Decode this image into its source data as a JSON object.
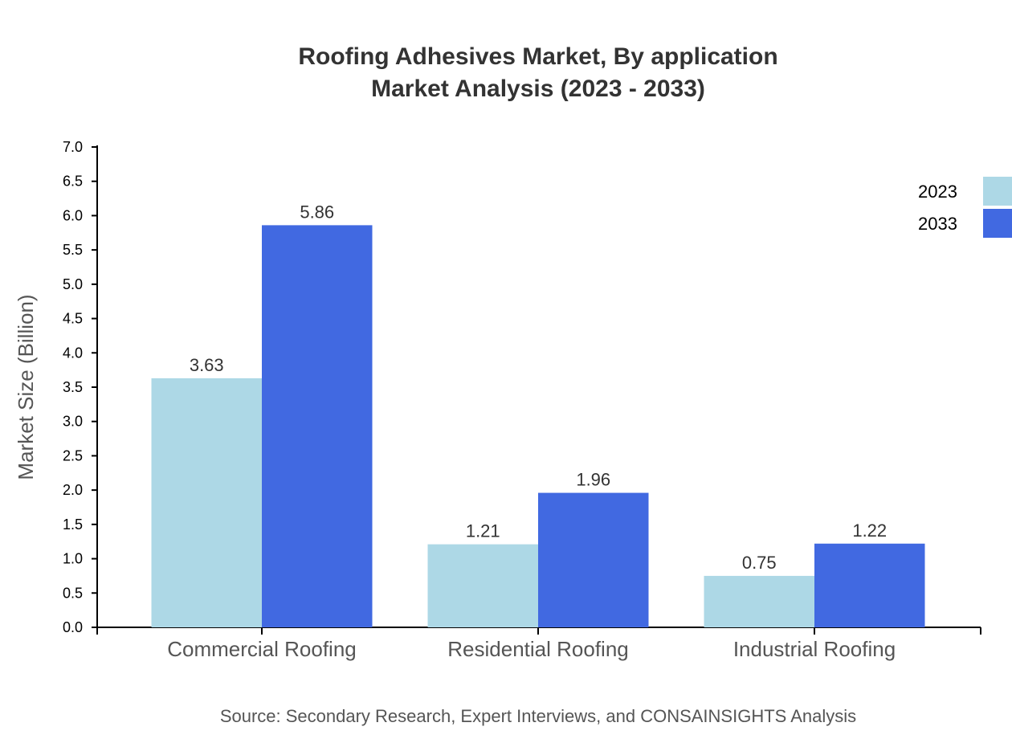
{
  "chart_data": {
    "type": "bar",
    "title": "Roofing Adhesives Market, By application",
    "subtitle": "Market Analysis (2023 - 2033)",
    "xlabel": "",
    "ylabel": "Market Size (Billion)",
    "ylim": [
      0,
      7
    ],
    "yticks": [
      "0.0",
      "0.5",
      "1.0",
      "1.5",
      "2.0",
      "2.5",
      "3.0",
      "3.5",
      "4.0",
      "4.5",
      "5.0",
      "5.5",
      "6.0",
      "6.5",
      "7.0"
    ],
    "categories": [
      "Commercial Roofing",
      "Residential Roofing",
      "Industrial Roofing"
    ],
    "series": [
      {
        "name": "2023",
        "color": "#add8e6",
        "values": [
          3.63,
          1.21,
          0.75
        ],
        "labels": [
          "3.63",
          "1.21",
          "0.75"
        ]
      },
      {
        "name": "2033",
        "color": "#4169e1",
        "values": [
          5.86,
          1.96,
          1.22
        ],
        "labels": [
          "5.86",
          "1.96",
          "1.22"
        ]
      }
    ],
    "grid": false,
    "legend": "top-right",
    "source": "Source: Secondary Research, Expert Interviews, and CONSAINSIGHTS Analysis"
  }
}
